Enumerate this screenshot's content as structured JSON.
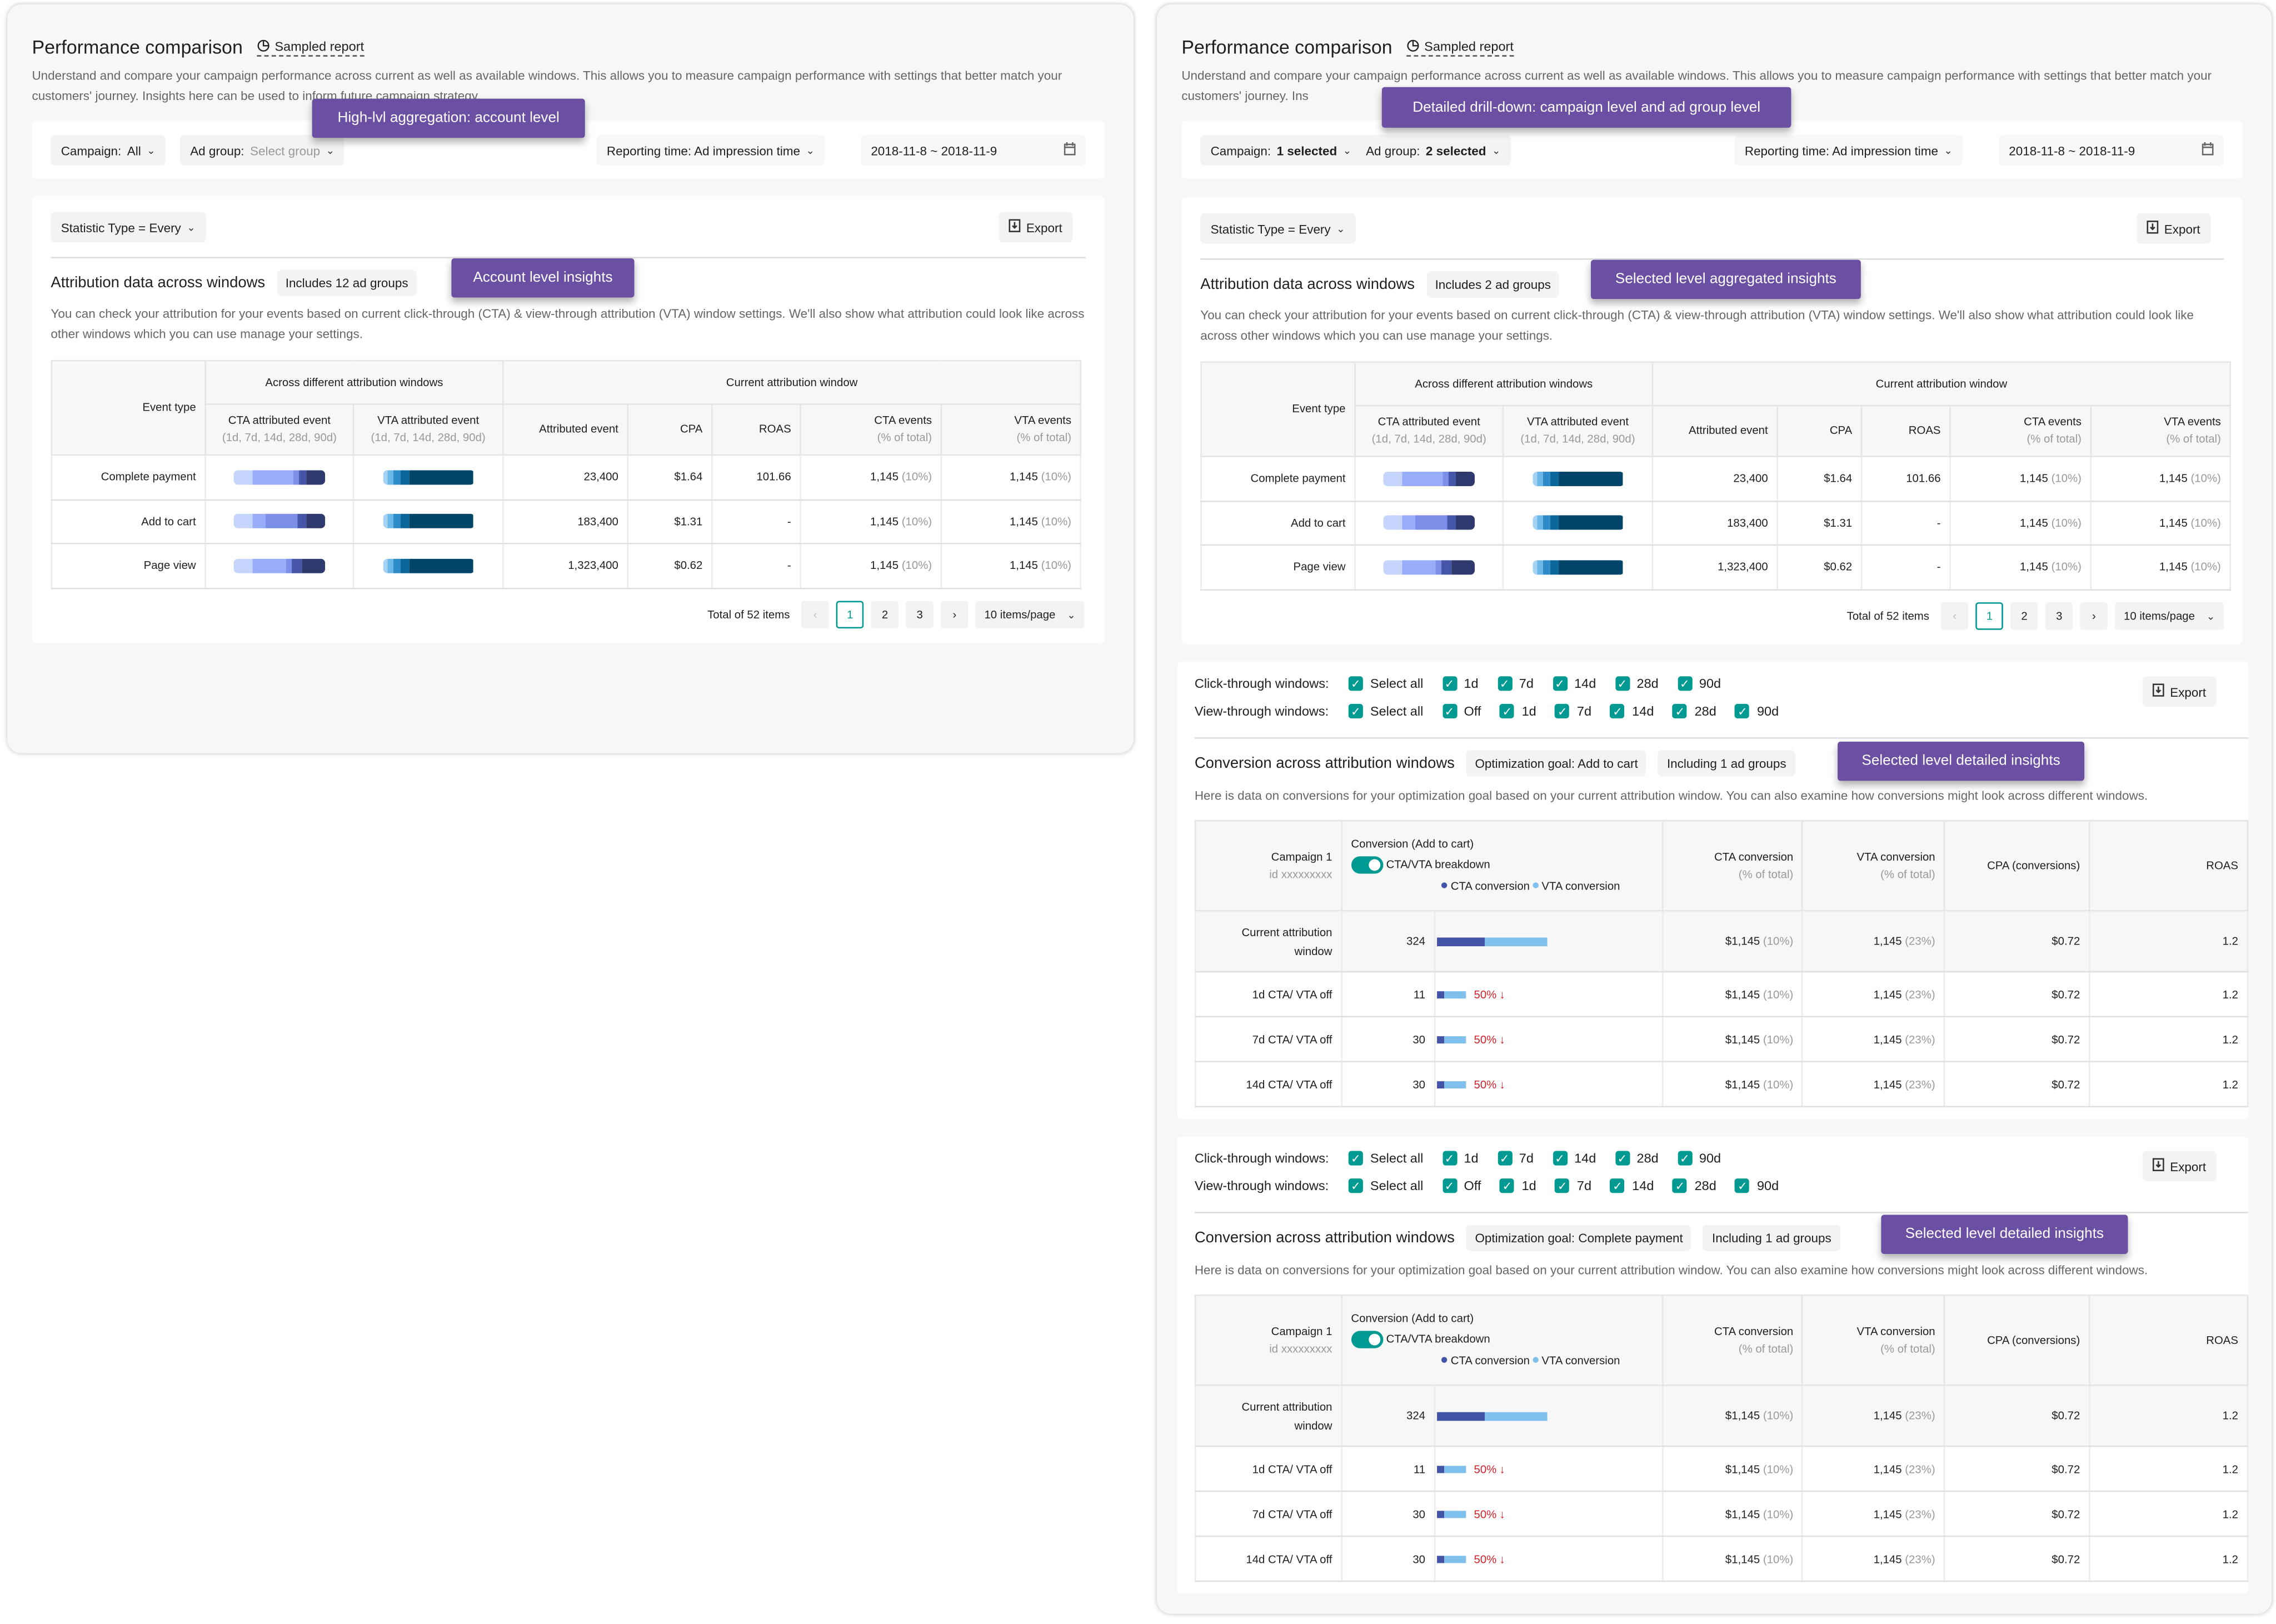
{
  "colors": {
    "accent": "#009a93",
    "annotation": "#6a4fa3",
    "cta": "#4354a6",
    "vta": "#7fc0ec",
    "decline": "#d3222a",
    "cta_windows": [
      "#c5d5fb",
      "#98aefb",
      "#7b8fe8",
      "#4655a8",
      "#2e3a6e"
    ],
    "vta_windows": [
      "#a6d3f5",
      "#6bb8e8",
      "#2d8cc8",
      "#0b6699",
      "#04466a"
    ]
  },
  "left": {
    "title": "Performance comparison",
    "sampled": "Sampled report",
    "sampled_icon": "pie-chart-icon",
    "description": "Understand and compare your campaign performance across current as well as available windows. This allows you to measure campaign performance with settings that better match your customers' journey. Insights here can be used to inform future campaign strategy.",
    "filters": {
      "campaign_label": "Campaign: ",
      "campaign_value": "All",
      "adgroup_label": "Ad group: ",
      "adgroup_value": "Select group",
      "reporting": "Reporting time: Ad impression time",
      "date": "2018-11-8 ~ 2018-11-9"
    },
    "statistic": "Statistic Type = Every",
    "export": "Export",
    "heading": "Attribution data across windows",
    "tag": "Includes 12 ad groups",
    "section_desc": "You can check your attribution for your events based on current click-through (CTA) & view-through attribution (VTA) window settings. We'll also show what attribution could look like across other windows which you can use manage your settings.",
    "annotations": [
      "High-lvl aggregation: account level",
      "Account level insights"
    ]
  },
  "right": {
    "title": "Performance comparison",
    "sampled": "Sampled report",
    "description": "Understand and compare your campaign performance across current as well as available windows. This allows you to measure campaign performance with settings that better match your customers' journey. Ins",
    "filters": {
      "campaign_label": "Campaign: ",
      "campaign_value": "1 selected",
      "adgroup_label": "Ad group: ",
      "adgroup_value": "2 selected",
      "reporting": "Reporting time: Ad impression time",
      "date": "2018-11-8 ~ 2018-11-9"
    },
    "statistic": "Statistic Type = Every",
    "export": "Export",
    "heading": "Attribution data across windows",
    "tag": "Includes 2 ad groups",
    "section_desc": "You can check your attribution for your events based on current click-through (CTA) & view-through attribution (VTA) window settings. We'll also show what attribution could look like across other windows which you can use manage your settings.",
    "annotations": [
      "Detailed drill-down: campaign level and ad group level",
      "Selected level aggregated insights",
      "Selected level detailed insights",
      "Selected level detailed insights"
    ]
  },
  "attribution_table": {
    "group_headers": [
      "Across different attribution windows",
      "Current attribution window"
    ],
    "headers": {
      "event_type": "Event type",
      "cta": "CTA attributed event",
      "cta_sub": "(1d, 7d, 14d, 28d, 90d)",
      "vta": "VTA attributed event",
      "vta_sub": "(1d, 7d, 14d, 28d, 90d)",
      "attributed": "Attributed event",
      "cpa": "CPA",
      "roas": "ROAS",
      "cta_events": "CTA events",
      "vta_events": "VTA events",
      "pct_sub": "(% of total)"
    },
    "rows": [
      {
        "event": "Complete payment",
        "cta_windows": [
          0.21,
          0.65,
          0.72,
          0.79,
          1.0
        ],
        "vta_windows": [
          0.05,
          0.12,
          0.2,
          0.3,
          1.0
        ],
        "attributed": "23,400",
        "cpa": "$1.64",
        "roas": "101.66",
        "cta_events": "1,145",
        "cta_pct": "(10%)",
        "vta_events": "1,145",
        "vta_pct": "(10%)"
      },
      {
        "event": "Add to cart",
        "cta_windows": [
          0.21,
          0.35,
          0.7,
          0.79,
          1.0
        ],
        "vta_windows": [
          0.05,
          0.12,
          0.2,
          0.3,
          1.0
        ],
        "attributed": "183,400",
        "cpa": "$1.31",
        "roas": "-",
        "cta_events": "1,145",
        "cta_pct": "(10%)",
        "vta_events": "1,145",
        "vta_pct": "(10%)"
      },
      {
        "event": "Page view",
        "cta_windows": [
          0.21,
          0.57,
          0.64,
          0.74,
          1.0
        ],
        "vta_windows": [
          0.05,
          0.12,
          0.2,
          0.3,
          1.0
        ],
        "attributed": "1,323,400",
        "cpa": "$0.62",
        "roas": "-",
        "cta_events": "1,145",
        "cta_pct": "(10%)",
        "vta_events": "1,145",
        "vta_pct": "(10%)"
      }
    ]
  },
  "pagination": {
    "total": "Total of 52 items",
    "prev": "‹",
    "pages": [
      "1",
      "2",
      "3"
    ],
    "active": "1",
    "next": "›",
    "per_page": "10 items/page"
  },
  "conversion_sections": [
    {
      "click_label": "Click-through windows:",
      "click_options": [
        "Select all",
        "1d",
        "7d",
        "14d",
        "28d",
        "90d"
      ],
      "view_label": "View-through windows:",
      "view_options": [
        "Select all",
        "Off",
        "1d",
        "7d",
        "14d",
        "28d",
        "90d"
      ],
      "export": "Export",
      "heading": "Conversion across attribution windows",
      "tags": [
        "Optimization goal: Add to cart",
        "Including 1 ad groups"
      ],
      "desc": "Here is data on conversions for your optimization goal based on your current attribution window. You can also examine how conversions might look across different windows.",
      "headers": {
        "campaign": "Campaign 1",
        "campaign_id": "id xxxxxxxxx",
        "conversion": "Conversion (Add to cart)",
        "toggle": "CTA/VTA breakdown",
        "toggle_on": true,
        "legend_cta": "CTA conversion",
        "legend_vta": "VTA conversion",
        "cta": "CTA conversion",
        "vta": "VTA conversion",
        "pct_sub": "(% of total)",
        "cpa": "CPA (conversions)",
        "roas": "ROAS"
      },
      "rows": [
        {
          "label": "Current attribution window",
          "value": "324",
          "cta_share": 0.43,
          "vta_share": 0.57,
          "change": "",
          "cta_conv": "$1,145",
          "cta_pct": "(10%)",
          "vta_conv": "1,145",
          "vta_pct": "(23%)",
          "cpa": "$0.72",
          "roas": "1.2"
        },
        {
          "label": "1d CTA/ VTA off",
          "value": "11",
          "cta_share": 0.07,
          "vta_share": 0.2,
          "change": "50%",
          "cta_conv": "$1,145",
          "cta_pct": "(10%)",
          "vta_conv": "1,145",
          "vta_pct": "(23%)",
          "cpa": "$0.72",
          "roas": "1.2"
        },
        {
          "label": "7d CTA/ VTA off",
          "value": "30",
          "cta_share": 0.07,
          "vta_share": 0.2,
          "change": "50%",
          "cta_conv": "$1,145",
          "cta_pct": "(10%)",
          "vta_conv": "1,145",
          "vta_pct": "(23%)",
          "cpa": "$0.72",
          "roas": "1.2"
        },
        {
          "label": "14d CTA/ VTA off",
          "value": "30",
          "cta_share": 0.07,
          "vta_share": 0.2,
          "change": "50%",
          "cta_conv": "$1,145",
          "cta_pct": "(10%)",
          "vta_conv": "1,145",
          "vta_pct": "(23%)",
          "cpa": "$0.72",
          "roas": "1.2"
        }
      ]
    },
    {
      "click_label": "Click-through windows:",
      "click_options": [
        "Select all",
        "1d",
        "7d",
        "14d",
        "28d",
        "90d"
      ],
      "view_label": "View-through windows:",
      "view_options": [
        "Select all",
        "Off",
        "1d",
        "7d",
        "14d",
        "28d",
        "90d"
      ],
      "export": "Export",
      "heading": "Conversion across attribution windows",
      "tags": [
        "Optimization goal: Complete payment",
        "Including 1 ad groups"
      ],
      "desc": "Here is data on conversions for your optimization goal based on your current attribution window. You can also examine how conversions might look across different windows.",
      "headers": {
        "campaign": "Campaign 1",
        "campaign_id": "id xxxxxxxxx",
        "conversion": "Conversion (Add to cart)",
        "toggle": "CTA/VTA breakdown",
        "toggle_on": true,
        "legend_cta": "CTA conversion",
        "legend_vta": "VTA conversion",
        "cta": "CTA conversion",
        "vta": "VTA conversion",
        "pct_sub": "(% of total)",
        "cpa": "CPA (conversions)",
        "roas": "ROAS"
      },
      "rows": [
        {
          "label": "Current attribution window",
          "value": "324",
          "cta_share": 0.43,
          "vta_share": 0.57,
          "change": "",
          "cta_conv": "$1,145",
          "cta_pct": "(10%)",
          "vta_conv": "1,145",
          "vta_pct": "(23%)",
          "cpa": "$0.72",
          "roas": "1.2"
        },
        {
          "label": "1d CTA/ VTA off",
          "value": "11",
          "cta_share": 0.07,
          "vta_share": 0.2,
          "change": "50%",
          "cta_conv": "$1,145",
          "cta_pct": "(10%)",
          "vta_conv": "1,145",
          "vta_pct": "(23%)",
          "cpa": "$0.72",
          "roas": "1.2"
        },
        {
          "label": "7d CTA/ VTA off",
          "value": "30",
          "cta_share": 0.07,
          "vta_share": 0.2,
          "change": "50%",
          "cta_conv": "$1,145",
          "cta_pct": "(10%)",
          "vta_conv": "1,145",
          "vta_pct": "(23%)",
          "cpa": "$0.72",
          "roas": "1.2"
        },
        {
          "label": "14d CTA/ VTA off",
          "value": "30",
          "cta_share": 0.07,
          "vta_share": 0.2,
          "change": "50%",
          "cta_conv": "$1,145",
          "cta_pct": "(10%)",
          "vta_conv": "1,145",
          "vta_pct": "(23%)",
          "cpa": "$0.72",
          "roas": "1.2"
        }
      ]
    }
  ]
}
